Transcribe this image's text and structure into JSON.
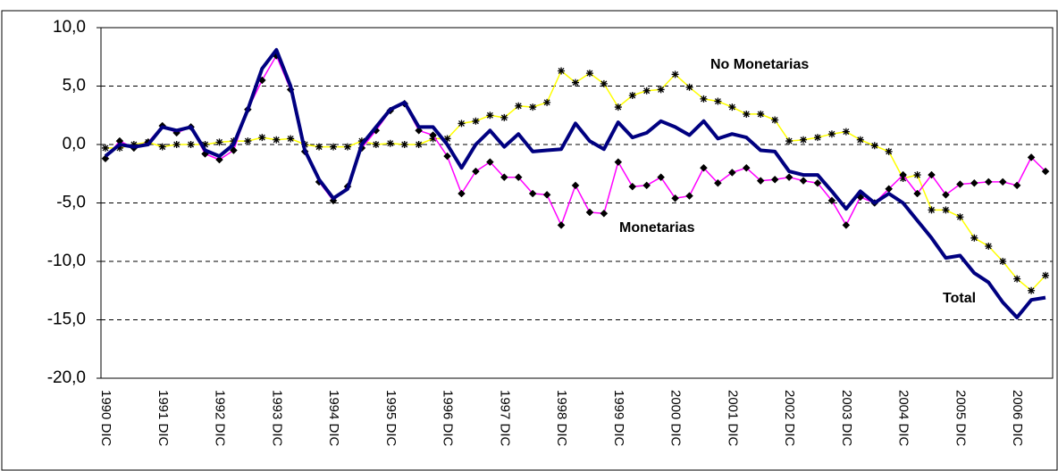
{
  "chart_data": {
    "type": "line",
    "categories": [
      "1990 DIC",
      null,
      null,
      null,
      "1991 DIC",
      null,
      null,
      null,
      "1992 DIC",
      null,
      null,
      null,
      "1993 DIC",
      null,
      null,
      null,
      "1994 DIC",
      null,
      null,
      null,
      "1995 DIC",
      null,
      null,
      null,
      "1996 DIC",
      null,
      null,
      null,
      "1997 DIC",
      null,
      null,
      null,
      "1998 DIC",
      null,
      null,
      null,
      "1999 DIC",
      null,
      null,
      null,
      "2000 DIC",
      null,
      null,
      null,
      "2001 DIC",
      null,
      null,
      null,
      "2002 DIC",
      null,
      null,
      null,
      "2003 DIC",
      null,
      null,
      null,
      "2004 DIC",
      null,
      null,
      null,
      "2005 DIC",
      null,
      null,
      null,
      "2006 DIC",
      null,
      null
    ],
    "series": [
      {
        "name": "Total",
        "color": "#000080",
        "marker": "none",
        "values": [
          -1.0,
          0.0,
          -0.2,
          0.0,
          1.5,
          1.2,
          1.5,
          -0.5,
          -1.0,
          0.0,
          3.0,
          6.5,
          8.1,
          5.0,
          -0.5,
          -3.0,
          -4.6,
          -3.8,
          0.0,
          1.5,
          3.0,
          3.6,
          1.5,
          1.5,
          0.0,
          -2.0,
          0.0,
          1.2,
          -0.2,
          0.9,
          -0.6,
          -0.5,
          -0.4,
          1.8,
          0.3,
          -0.4,
          1.9,
          0.6,
          1.0,
          2.0,
          1.5,
          0.8,
          2.0,
          0.5,
          0.9,
          0.6,
          -0.5,
          -0.6,
          -2.3,
          -2.6,
          -2.6,
          -4.0,
          -5.5,
          -4.0,
          -5.0,
          -4.2,
          -5.0,
          -6.5,
          -8.0,
          -9.7,
          -9.5,
          -11.0,
          -11.8,
          -13.5,
          -14.8,
          -13.3,
          -13.1
        ]
      },
      {
        "name": "Monetarias",
        "color": "#ff00ff",
        "marker": "diamond",
        "values": [
          -1.2,
          0.3,
          -0.3,
          0.2,
          1.6,
          1.0,
          1.5,
          -0.8,
          -1.3,
          -0.5,
          3.0,
          5.5,
          7.6,
          4.7,
          -0.6,
          -3.2,
          -4.8,
          -3.6,
          -0.3,
          1.2,
          2.9,
          3.5,
          1.2,
          0.8,
          -1.0,
          -4.2,
          -2.3,
          -1.5,
          -2.8,
          -2.8,
          -4.2,
          -4.3,
          -6.9,
          -3.5,
          -5.8,
          -5.9,
          -1.5,
          -3.6,
          -3.5,
          -2.8,
          -4.6,
          -4.4,
          -2.0,
          -3.3,
          -2.4,
          -2.0,
          -3.1,
          -3.0,
          -2.8,
          -3.1,
          -3.3,
          -4.8,
          -6.9,
          -4.5,
          -5.0,
          -3.8,
          -2.6,
          -4.2,
          -2.6,
          -4.3,
          -3.4,
          -3.3,
          -3.2,
          -3.2,
          -3.5,
          -1.1,
          -2.3
        ]
      },
      {
        "name": "No Monetarias",
        "color": "#ffff00",
        "marker": "asterisk",
        "values": [
          -0.3,
          -0.3,
          0.0,
          0.2,
          -0.2,
          0.0,
          0.0,
          0.0,
          0.2,
          0.3,
          0.3,
          0.6,
          0.4,
          0.5,
          0.0,
          -0.2,
          -0.2,
          -0.2,
          0.3,
          0.0,
          0.1,
          0.0,
          0.0,
          0.5,
          0.5,
          1.8,
          2.0,
          2.5,
          2.3,
          3.3,
          3.2,
          3.6,
          6.3,
          5.3,
          6.1,
          5.2,
          3.2,
          4.2,
          4.6,
          4.7,
          6.0,
          4.9,
          3.9,
          3.7,
          3.2,
          2.6,
          2.6,
          2.1,
          0.3,
          0.4,
          0.6,
          0.9,
          1.1,
          0.4,
          -0.1,
          -0.6,
          -2.9,
          -2.6,
          -5.6,
          -5.6,
          -6.2,
          -8.0,
          -8.7,
          -10.0,
          -11.5,
          -12.5,
          -11.2
        ]
      }
    ],
    "ylim": [
      -20,
      10
    ],
    "yticks": [
      {
        "value": -20,
        "label": "-20,0"
      },
      {
        "value": -15,
        "label": "-15,0"
      },
      {
        "value": -10,
        "label": "-10,0"
      },
      {
        "value": -5,
        "label": "-5,0"
      },
      {
        "value": 0,
        "label": "0,0"
      },
      {
        "value": 5,
        "label": "5,0"
      },
      {
        "value": 10,
        "label": "10,0"
      }
    ],
    "grid": true
  }
}
